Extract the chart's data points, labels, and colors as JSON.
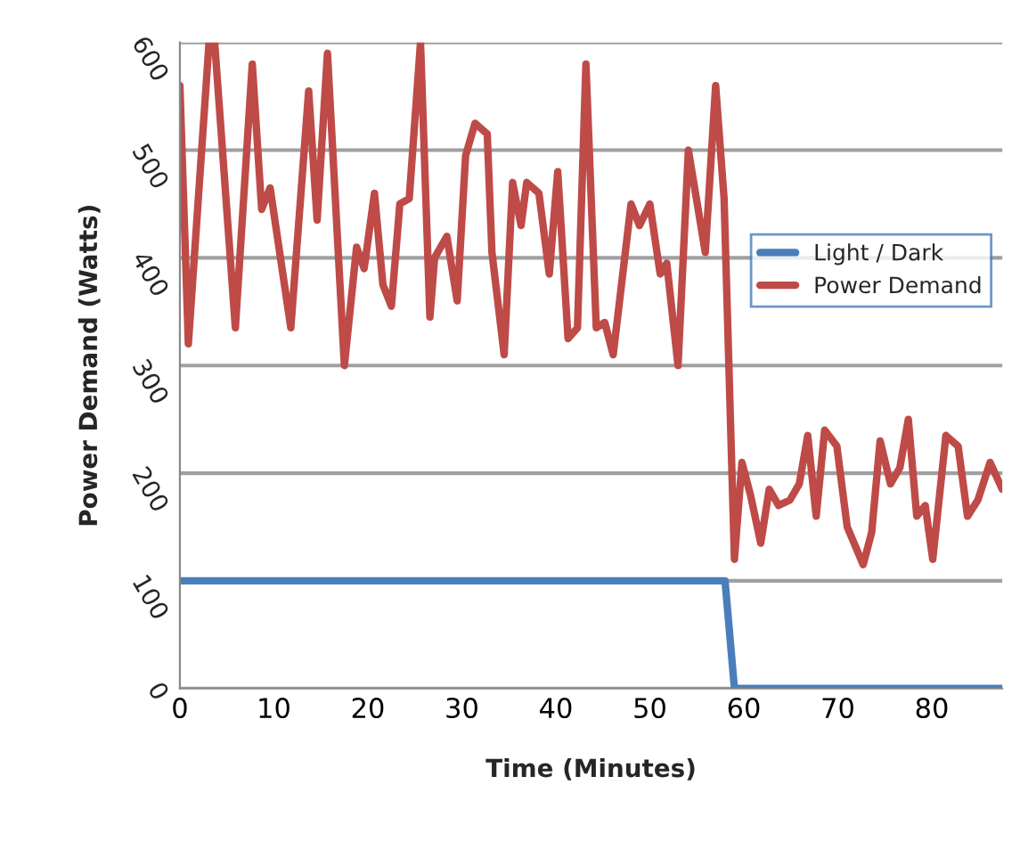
{
  "chart_data": {
    "type": "line",
    "xlabel": "Time (Minutes)",
    "ylabel": "Power Demand (Watts)",
    "xlim": [
      0,
      87.5
    ],
    "xticks": [
      0,
      10,
      20,
      30,
      40,
      50,
      60,
      70,
      80
    ],
    "ylim": [
      0,
      600
    ],
    "yticks": [
      0,
      100,
      200,
      300,
      400,
      500,
      600
    ],
    "grid": "y",
    "legend": "top right",
    "marker": "none",
    "line_style": "solid",
    "series": [
      {
        "name": "Light / Dark",
        "color": "#4a7ebb",
        "x": [
          0,
          58,
          59,
          87.5
        ],
        "values": [
          100,
          100,
          0,
          0
        ]
      },
      {
        "name": "Power Demand",
        "color": "#be4b48",
        "x": [
          0,
          0.9,
          3.1,
          3.7,
          5.9,
          7.7,
          8.7,
          9.6,
          11.8,
          13.7,
          14.6,
          15.7,
          17.5,
          18.8,
          19.6,
          20.7,
          21.6,
          22.5,
          23.4,
          24.4,
          25.6,
          26.6,
          27.1,
          28.4,
          29.5,
          30.4,
          31.4,
          32.7,
          33.2,
          34.5,
          35.4,
          36.3,
          36.9,
          38.2,
          39.3,
          40.2,
          41.3,
          42.3,
          43.2,
          44.3,
          45.2,
          46.1,
          48.0,
          48.9,
          50.0,
          51.1,
          51.8,
          53.0,
          54.1,
          55.9,
          57.0,
          57.9,
          59.0,
          59.8,
          60.7,
          61.8,
          62.7,
          63.7,
          64.9,
          65.9,
          66.8,
          67.7,
          68.6,
          69.9,
          71.0,
          72.7,
          73.6,
          74.5,
          75.6,
          76.6,
          77.5,
          78.4,
          79.3,
          80.1,
          81.5,
          82.8,
          83.8,
          84.9,
          86.2,
          87.5
        ],
        "values": [
          560,
          320,
          600,
          600,
          335,
          580,
          445,
          465,
          335,
          555,
          435,
          590,
          300,
          410,
          390,
          460,
          375,
          355,
          450,
          455,
          600,
          345,
          400,
          420,
          360,
          495,
          525,
          515,
          405,
          310,
          470,
          430,
          470,
          460,
          385,
          480,
          325,
          335,
          580,
          335,
          340,
          310,
          450,
          430,
          450,
          385,
          395,
          300,
          500,
          405,
          560,
          455,
          120,
          210,
          180,
          135,
          185,
          170,
          175,
          190,
          235,
          160,
          240,
          225,
          150,
          115,
          145,
          230,
          190,
          205,
          250,
          160,
          170,
          120,
          235,
          225,
          160,
          175,
          210,
          185
        ]
      }
    ]
  }
}
